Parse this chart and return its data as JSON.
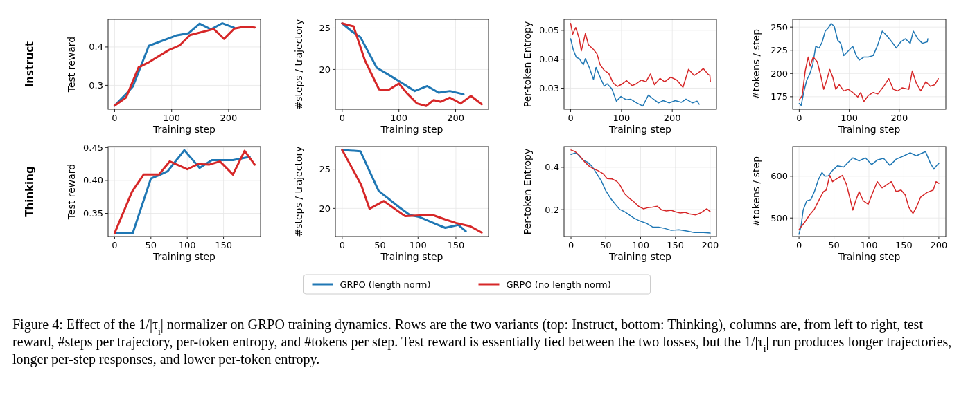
{
  "chart_data": [
    {
      "type": "line",
      "xlabel": "Training step",
      "ylabel": "Test reward",
      "annotations": [
        "Instruct"
      ],
      "xlim": [
        -11.5,
        256
      ],
      "ylim": [
        0.2376,
        0.472
      ],
      "xticks": [
        0,
        100,
        200
      ],
      "yticks": [
        0.3,
        0.4
      ],
      "grid": true,
      "series": [
        {
          "color": "#1f77b4",
          "x": [
            0,
            23,
            32,
            60,
            108,
            130,
            149,
            169,
            189,
            210
          ],
          "values": [
            0.247,
            0.282,
            0.297,
            0.403,
            0.43,
            0.436,
            0.461,
            0.446,
            0.462,
            0.45
          ]
        },
        {
          "color": "#d62728",
          "x": [
            0,
            20,
            42,
            61,
            95,
            114,
            132,
            174,
            192,
            210,
            228,
            246
          ],
          "values": [
            0.247,
            0.268,
            0.347,
            0.361,
            0.392,
            0.404,
            0.431,
            0.447,
            0.421,
            0.448,
            0.453,
            0.451
          ]
        }
      ]
    },
    {
      "type": "line",
      "xlabel": "Training step",
      "ylabel": "#steps / trajectory",
      "xlim": [
        -12,
        258
      ],
      "ylim": [
        15.2,
        26.04
      ],
      "xticks": [
        0,
        100,
        200
      ],
      "yticks": [
        20,
        25
      ],
      "grid": true,
      "series": [
        {
          "color": "#1f77b4",
          "x": [
            0,
            17,
            32,
            61,
            81,
            100,
            128,
            150,
            170,
            190,
            214
          ],
          "values": [
            25.56,
            24.6,
            23.9,
            20.2,
            19.4,
            18.6,
            17.4,
            18.0,
            17.2,
            17.4,
            17.0
          ]
        },
        {
          "color": "#d62728",
          "x": [
            0,
            20,
            40,
            65,
            81,
            100,
            116,
            132,
            148,
            161,
            174,
            190,
            209,
            227,
            246
          ],
          "values": [
            25.56,
            25.2,
            21.1,
            17.6,
            17.5,
            18.3,
            17.0,
            15.9,
            15.6,
            16.3,
            16.1,
            16.6,
            15.9,
            16.8,
            15.8
          ]
        }
      ]
    },
    {
      "type": "line",
      "xlabel": "Training step",
      "ylabel": "Per-token Entropy",
      "xlim": [
        -13,
        287
      ],
      "ylim": [
        0.0227,
        0.0538
      ],
      "xticks": [
        0,
        100,
        200
      ],
      "yticks": [
        0.03,
        0.04,
        0.05
      ],
      "grid": true,
      "series": [
        {
          "color": "#1f77b4",
          "x": [
            0,
            5,
            11,
            17,
            25,
            29,
            37,
            45,
            50,
            58,
            66,
            72,
            81,
            90,
            99,
            109,
            118,
            130,
            142,
            153,
            163,
            173,
            182,
            194,
            206,
            218,
            227,
            240,
            249,
            253
          ],
          "values": [
            0.0471,
            0.0434,
            0.0407,
            0.0402,
            0.0381,
            0.0402,
            0.037,
            0.033,
            0.0372,
            0.0338,
            0.0307,
            0.0315,
            0.0298,
            0.0255,
            0.0271,
            0.026,
            0.0262,
            0.0249,
            0.0238,
            0.0276,
            0.0262,
            0.0249,
            0.0257,
            0.0249,
            0.0257,
            0.0251,
            0.0262,
            0.0249,
            0.0255,
            0.0244
          ]
        },
        {
          "color": "#d62728",
          "x": [
            0,
            4,
            10,
            17,
            21,
            29,
            35,
            45,
            52,
            58,
            66,
            75,
            84,
            92,
            102,
            110,
            121,
            129,
            139,
            148,
            157,
            165,
            176,
            185,
            197,
            209,
            221,
            232,
            243,
            252,
            261,
            270,
            274,
            275
          ],
          "values": [
            0.0524,
            0.0487,
            0.051,
            0.0471,
            0.0429,
            0.0489,
            0.045,
            0.0434,
            0.0418,
            0.0381,
            0.0362,
            0.0351,
            0.0317,
            0.0306,
            0.0315,
            0.0326,
            0.0309,
            0.0315,
            0.0328,
            0.0322,
            0.0349,
            0.0312,
            0.0334,
            0.0322,
            0.0338,
            0.0328,
            0.0303,
            0.0365,
            0.0344,
            0.0354,
            0.0368,
            0.0349,
            0.0344,
            0.0322
          ]
        }
      ]
    },
    {
      "type": "line",
      "xlabel": "Training step",
      "ylabel": "#tokens / step",
      "xlim": [
        -13,
        293
      ],
      "ylim": [
        161.5,
        258.3
      ],
      "xticks": [
        0,
        100,
        200
      ],
      "yticks": [
        175,
        200,
        225,
        250
      ],
      "grid": true,
      "series": [
        {
          "color": "#1f77b4",
          "x": [
            0,
            4,
            9,
            15,
            21,
            27,
            33,
            40,
            46,
            52,
            58,
            64,
            70,
            77,
            83,
            89,
            98,
            107,
            114,
            120,
            129,
            138,
            148,
            157,
            166,
            175,
            185,
            194,
            203,
            212,
            222,
            228,
            237,
            246,
            256,
            257
          ],
          "values": [
            167.7,
            165.7,
            179.6,
            192.8,
            199.5,
            209.4,
            229.2,
            227.5,
            234.1,
            245.7,
            249,
            254,
            250.7,
            235.8,
            232.5,
            219.3,
            224.2,
            229.2,
            219.3,
            214.4,
            217.7,
            217.7,
            219.3,
            230.9,
            245.7,
            240.8,
            234.1,
            227.5,
            234.1,
            237.4,
            232.5,
            245.7,
            237.4,
            232.5,
            234.1,
            237.4
          ]
        },
        {
          "color": "#d62728",
          "x": [
            0,
            6,
            12,
            18,
            22,
            28,
            36,
            43,
            49,
            55,
            61,
            67,
            73,
            80,
            89,
            98,
            107,
            117,
            123,
            129,
            138,
            148,
            157,
            169,
            179,
            188,
            197,
            206,
            219,
            226,
            234,
            243,
            253,
            262,
            271,
            278
          ],
          "values": [
            171.4,
            176.3,
            202.8,
            217.7,
            207.8,
            217.7,
            212.7,
            197.8,
            183,
            192.8,
            204.4,
            196.2,
            183,
            187.9,
            181.3,
            183,
            179.6,
            174.7,
            179.6,
            169.7,
            176.3,
            179.6,
            178,
            186.2,
            194.5,
            183,
            181.3,
            184.6,
            183,
            202.8,
            189.6,
            181.3,
            191.2,
            186.2,
            187.9,
            194.5
          ]
        }
      ]
    },
    {
      "type": "line",
      "xlabel": "Training step",
      "ylabel": "Test reward",
      "annotations": [
        "Thinking"
      ],
      "xlim": [
        -9,
        201
      ],
      "ylim": [
        0.3148,
        0.4514
      ],
      "xticks": [
        0,
        50,
        100,
        150
      ],
      "yticks": [
        {
          "value": 0.35,
          "label": "0.35"
        },
        {
          "value": 0.4,
          "label": "0.40"
        },
        {
          "value": 0.45,
          "label": "0.45"
        }
      ],
      "grid": true,
      "series": [
        {
          "color": "#1f77b4",
          "x": [
            0,
            25,
            50,
            61,
            73,
            96,
            117,
            134,
            163,
            186
          ],
          "values": [
            0.32,
            0.32,
            0.403,
            0.408,
            0.414,
            0.446,
            0.419,
            0.431,
            0.431,
            0.436
          ]
        },
        {
          "color": "#d62728",
          "x": [
            0,
            24,
            40,
            61,
            76,
            90,
            100,
            115,
            130,
            145,
            163,
            179,
            193
          ],
          "values": [
            0.32,
            0.383,
            0.409,
            0.409,
            0.429,
            0.422,
            0.417,
            0.425,
            0.424,
            0.429,
            0.409,
            0.445,
            0.424
          ]
        }
      ]
    },
    {
      "type": "line",
      "xlabel": "Training step",
      "ylabel": "#steps / trajectory",
      "xlim": [
        -9,
        193
      ],
      "ylim": [
        16.42,
        27.87
      ],
      "xticks": [
        0,
        50,
        100,
        150
      ],
      "yticks": [
        20,
        25
      ],
      "grid": true,
      "series": [
        {
          "color": "#1f77b4",
          "x": [
            0,
            24,
            48,
            75,
            89,
            102,
            124,
            136,
            153,
            163
          ],
          "values": [
            27.44,
            27.28,
            22.24,
            20.16,
            19.17,
            18.9,
            17.99,
            17.52,
            17.9,
            17.09
          ]
        },
        {
          "color": "#d62728",
          "x": [
            0,
            25,
            36,
            55,
            73,
            83,
            102,
            119,
            135,
            150,
            169,
            184
          ],
          "values": [
            27.44,
            23.0,
            19.96,
            20.94,
            19.69,
            19.02,
            19.1,
            19.17,
            18.62,
            18.15,
            17.72,
            16.93
          ]
        }
      ]
    },
    {
      "type": "line",
      "xlabel": "Training step",
      "ylabel": "Per-token Entropy",
      "xlim": [
        -10,
        209
      ],
      "ylim": [
        0.073,
        0.4978
      ],
      "xticks": [
        0,
        50,
        100,
        150,
        200
      ],
      "yticks": [
        0.2,
        0.4
      ],
      "grid": true,
      "series": [
        {
          "color": "#1f77b4",
          "x": [
            0,
            6,
            10,
            17,
            24,
            30,
            37,
            44,
            50,
            57,
            64,
            70,
            77,
            84,
            90,
            99,
            108,
            117,
            126,
            135,
            144,
            155,
            166,
            177,
            188,
            200
          ],
          "values": [
            0.461,
            0.468,
            0.461,
            0.435,
            0.424,
            0.406,
            0.37,
            0.333,
            0.289,
            0.253,
            0.224,
            0.201,
            0.19,
            0.175,
            0.161,
            0.146,
            0.136,
            0.118,
            0.117,
            0.111,
            0.102,
            0.105,
            0.099,
            0.092,
            0.093,
            0.089
          ]
        },
        {
          "color": "#d62728",
          "x": [
            0,
            6,
            12,
            19,
            26,
            32,
            39,
            46,
            52,
            59,
            66,
            70,
            77,
            84,
            90,
            97,
            104,
            110,
            117,
            124,
            130,
            137,
            144,
            150,
            157,
            164,
            170,
            179,
            186,
            195,
            200
          ],
          "values": [
            0.482,
            0.474,
            0.457,
            0.428,
            0.406,
            0.394,
            0.384,
            0.37,
            0.347,
            0.345,
            0.333,
            0.318,
            0.275,
            0.253,
            0.238,
            0.216,
            0.204,
            0.209,
            0.212,
            0.216,
            0.199,
            0.194,
            0.197,
            0.19,
            0.184,
            0.187,
            0.18,
            0.175,
            0.184,
            0.204,
            0.19
          ]
        }
      ]
    },
    {
      "type": "line",
      "xlabel": "Training step",
      "ylabel": "#tokens / step",
      "legend": "bottom",
      "annotations": [
        "Figure 4: Effect of the 1/|τ$_{i}$| normalizer on GRPO training dynamics. Rows are the two variants (top: Instruct, bottom: Thinking), columns are, from left to right, test reward, #steps per trajectory, per-token entropy, and #tokens per step. Test reward is essentially tied between the two losses, but the 1/|τ$_{i}$| run produces longer trajectories, longer per-step responses, and lower per-token entropy."
      ],
      "xlim": [
        -9,
        210
      ],
      "ylim": [
        455.6,
        671
      ],
      "xticks": [
        0,
        50,
        100,
        150,
        200
      ],
      "yticks": [
        500,
        600
      ],
      "grid": true,
      "series": [
        {
          "name": "GRPO (length norm)",
          "color": "#1f77b4",
          "x": [
            0,
            3,
            6,
            11,
            17,
            22,
            28,
            33,
            37,
            42,
            48,
            55,
            64,
            70,
            77,
            86,
            95,
            104,
            112,
            121,
            130,
            139,
            150,
            159,
            168,
            174,
            181,
            188,
            193,
            197,
            200
          ],
          "values": [
            461,
            481,
            519,
            541,
            544,
            563,
            593,
            609,
            600,
            601,
            614,
            625,
            622,
            633,
            644,
            637,
            644,
            628,
            639,
            643,
            626,
            641,
            649,
            656,
            649,
            654,
            659,
            631,
            617,
            626,
            631
          ]
        },
        {
          "name": "GRPO (no length norm)",
          "color": "#d62728",
          "x": [
            0,
            4,
            8,
            15,
            22,
            28,
            35,
            39,
            44,
            48,
            55,
            62,
            68,
            77,
            81,
            86,
            92,
            99,
            106,
            112,
            119,
            126,
            132,
            139,
            146,
            152,
            157,
            163,
            168,
            174,
            183,
            192,
            196,
            200
          ],
          "values": [
            472,
            481,
            489,
            507,
            521,
            541,
            563,
            567,
            602,
            587,
            595,
            602,
            580,
            519,
            541,
            563,
            541,
            533,
            563,
            587,
            572,
            580,
            587,
            563,
            567,
            555,
            526,
            511,
            526,
            550,
            561,
            567,
            587,
            583
          ]
        }
      ]
    }
  ]
}
